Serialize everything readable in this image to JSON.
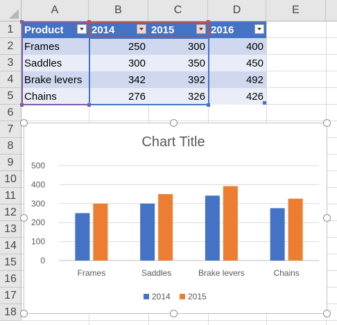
{
  "sheet": {
    "columns": [
      "A",
      "B",
      "C",
      "D",
      "E"
    ],
    "rows": [
      "1",
      "2",
      "3",
      "4",
      "5",
      "6",
      "7",
      "8",
      "9",
      "10",
      "11",
      "12",
      "13",
      "14",
      "15",
      "16",
      "17",
      "18"
    ]
  },
  "table": {
    "headers": [
      "Product",
      "2014",
      "2015",
      "2016"
    ],
    "rows": [
      [
        "Frames",
        "250",
        "300",
        "400"
      ],
      [
        "Saddles",
        "300",
        "350",
        "450"
      ],
      [
        "Brake levers",
        "342",
        "392",
        "492"
      ],
      [
        "Chains",
        "276",
        "326",
        "426"
      ]
    ],
    "header_color": "#4472c4",
    "band_colors": [
      "#cfd8ee",
      "#e9edf7"
    ]
  },
  "chart_data": {
    "type": "bar",
    "title": "Chart Title",
    "categories": [
      "Frames",
      "Saddles",
      "Brake levers",
      "Chains"
    ],
    "series": [
      {
        "name": "2014",
        "values": [
          250,
          300,
          342,
          276
        ],
        "color": "#4472c4"
      },
      {
        "name": "2015",
        "values": [
          300,
          350,
          392,
          326
        ],
        "color": "#ed7d31"
      }
    ],
    "ylim": [
      0,
      500
    ],
    "yticks": [
      "0",
      "100",
      "200",
      "300",
      "400",
      "500"
    ],
    "grid": true,
    "legend": "bottom"
  }
}
